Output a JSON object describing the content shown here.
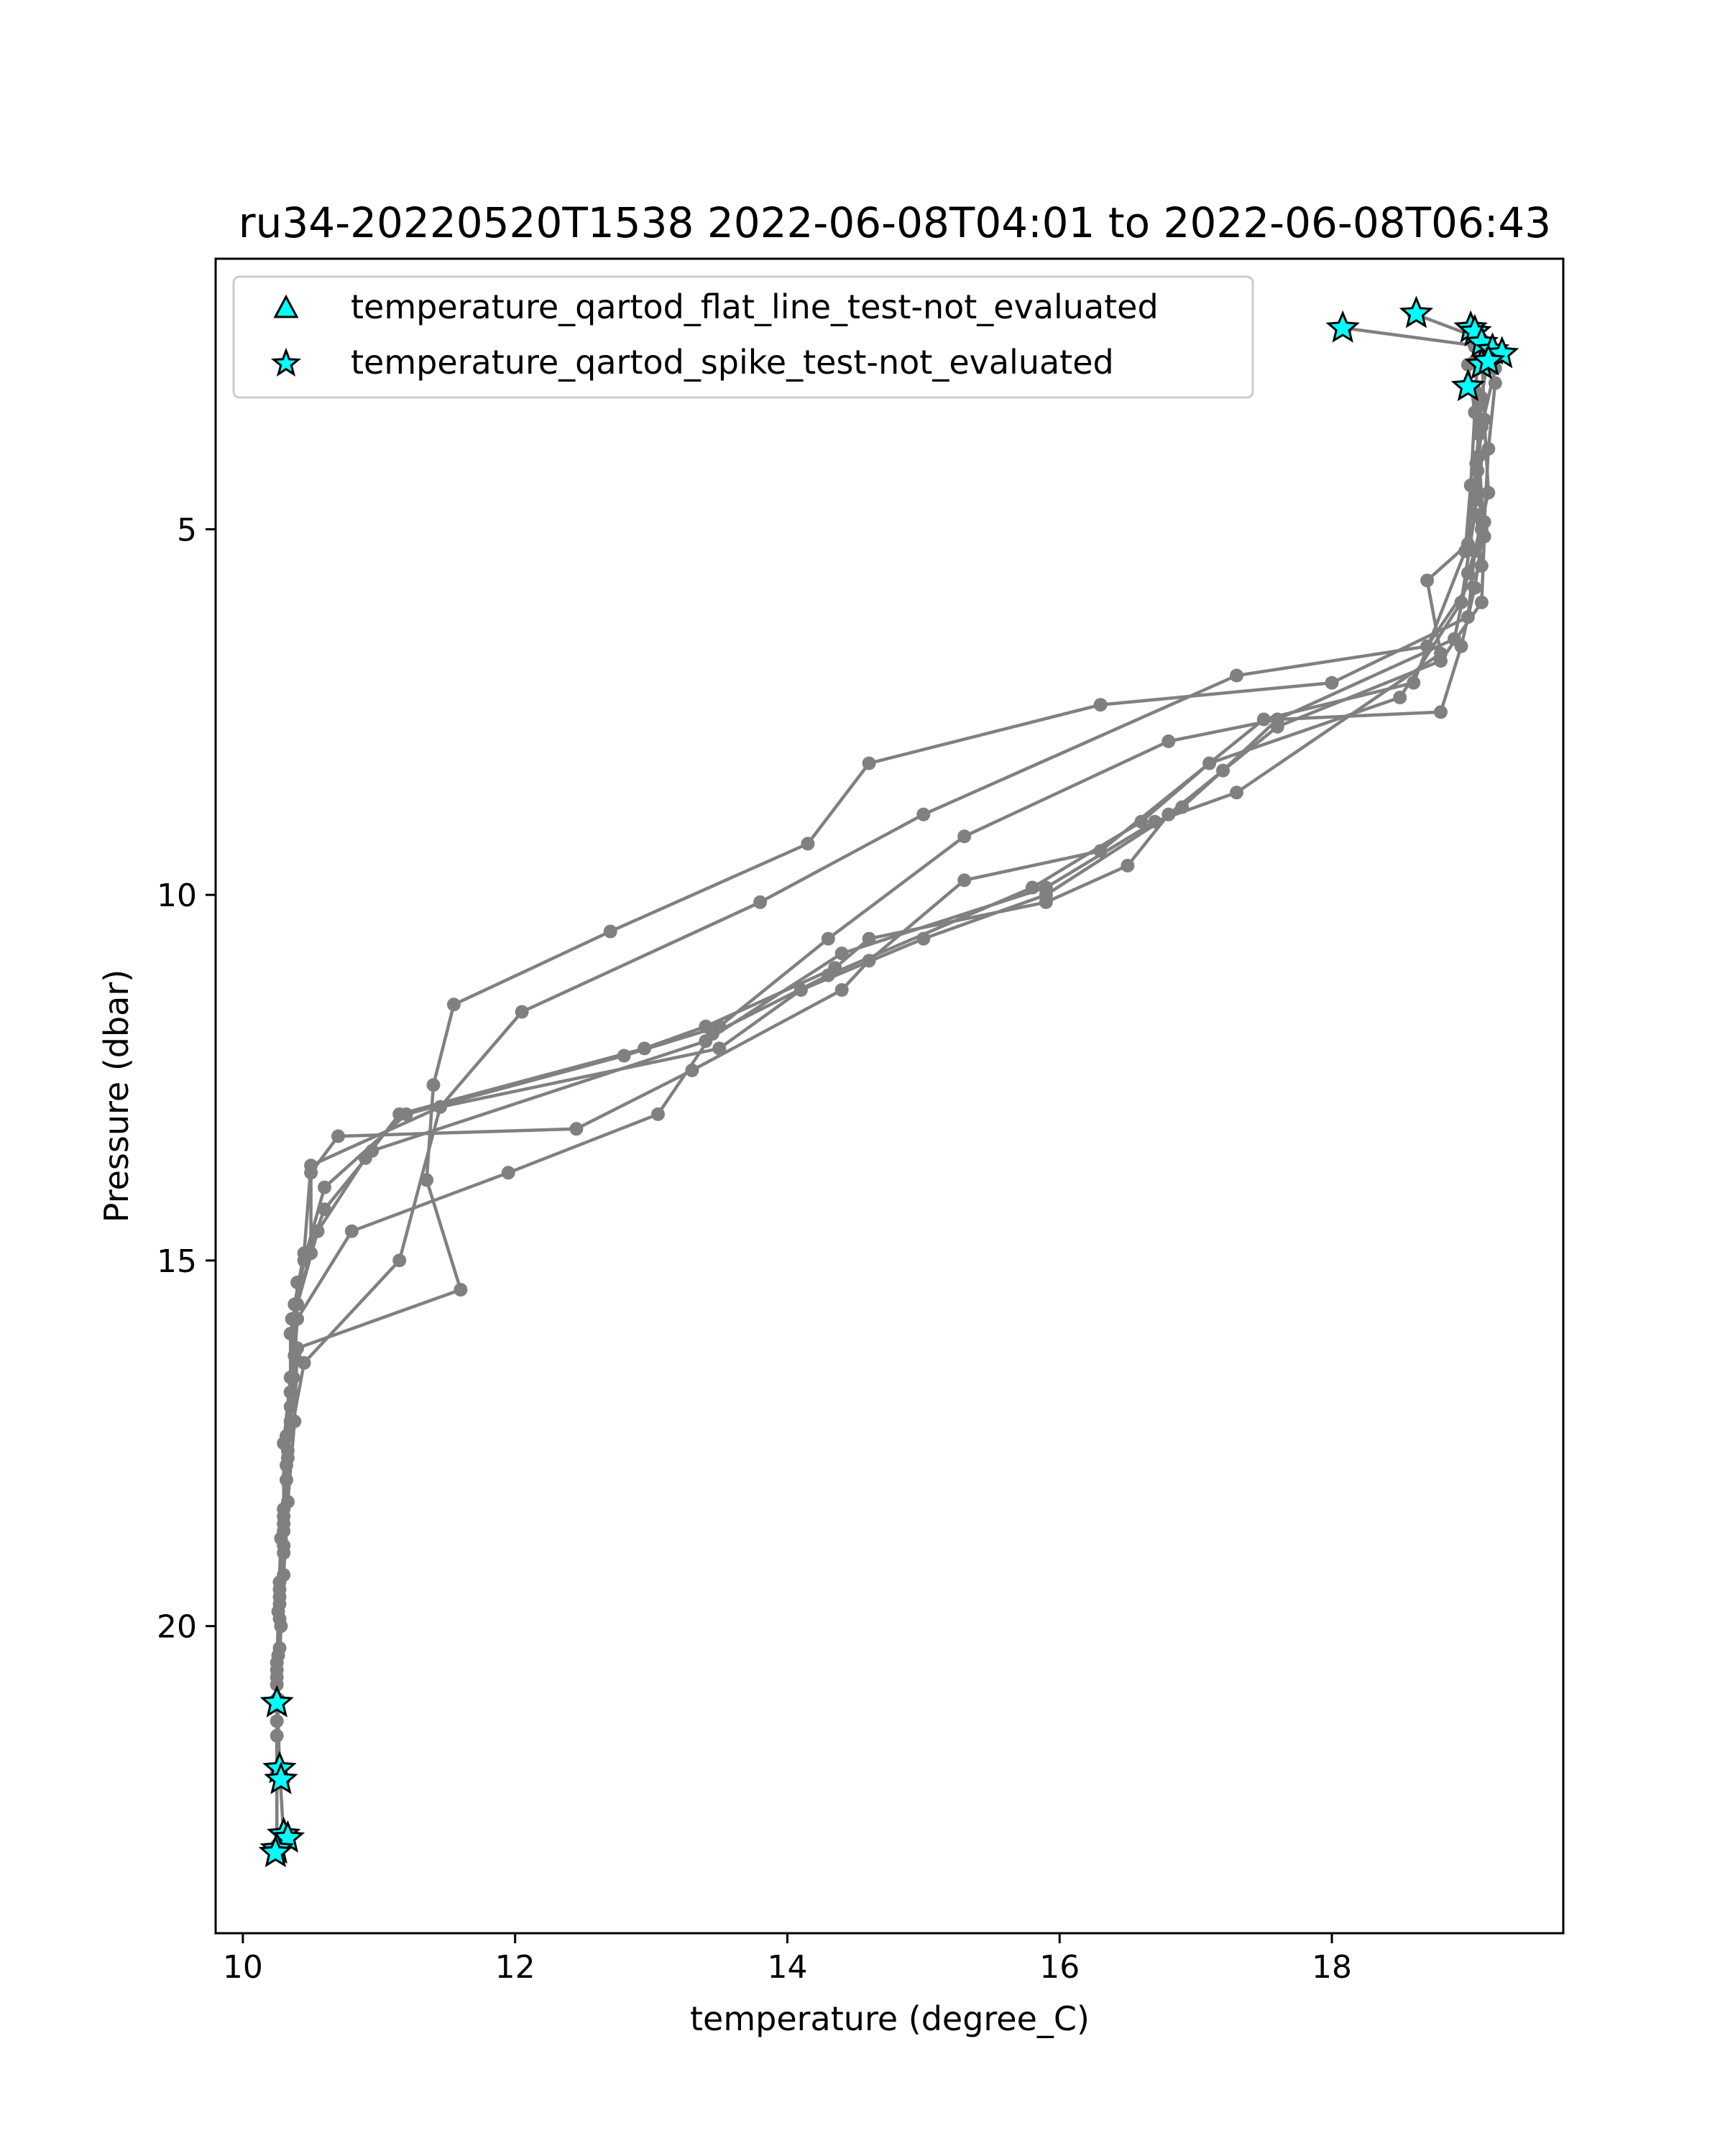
{
  "chart_data": {
    "type": "line",
    "title": "ru34-20220520T1538 2022-06-08T04:01 to 2022-06-08T06:43",
    "xlabel": "temperature (degree_C)",
    "ylabel": "Pressure (dbar)",
    "xlim": [
      9.8,
      19.7
    ],
    "ylim": [
      24.2,
      1.3
    ],
    "y_inverted": true,
    "xticks": [
      10,
      12,
      14,
      16,
      18
    ],
    "yticks": [
      5,
      10,
      15,
      20
    ],
    "grid": false,
    "legend_position": "top-left",
    "line_color": "#808080",
    "legend": [
      {
        "label": "temperature_qartod_flat_line_test-not_evaluated",
        "marker": "triangle",
        "color": "#00ffff"
      },
      {
        "label": "temperature_qartod_spike_test-not_evaluated",
        "marker": "star",
        "color": "#00ffff"
      }
    ],
    "profiles": [
      [
        [
          19.05,
          2.7
        ],
        [
          19.08,
          3.3
        ],
        [
          19.07,
          4.2
        ],
        [
          19.1,
          5.0
        ],
        [
          19.0,
          5.6
        ],
        [
          18.9,
          6.5
        ],
        [
          17.6,
          7.6
        ],
        [
          16.8,
          7.9
        ],
        [
          15.3,
          9.2
        ],
        [
          14.3,
          10.6
        ],
        [
          13.5,
          11.8
        ],
        [
          12.8,
          12.2
        ],
        [
          11.2,
          13.0
        ],
        [
          10.6,
          14.0
        ],
        [
          10.45,
          15.0
        ],
        [
          10.35,
          16.0
        ],
        [
          10.35,
          17.0
        ],
        [
          10.32,
          18.0
        ],
        [
          10.3,
          19.0
        ],
        [
          10.28,
          20.0
        ],
        [
          10.26,
          21.0
        ],
        [
          10.25,
          22.0
        ],
        [
          10.25,
          23.0
        ]
      ],
      [
        [
          18.1,
          2.25
        ],
        [
          19.1,
          2.5
        ],
        [
          19.12,
          3.5
        ],
        [
          19.15,
          4.5
        ],
        [
          19.05,
          5.3
        ],
        [
          19.0,
          6.2
        ],
        [
          18.0,
          7.1
        ],
        [
          16.3,
          7.4
        ],
        [
          14.6,
          8.2
        ],
        [
          14.15,
          9.3
        ],
        [
          12.7,
          10.5
        ],
        [
          11.55,
          11.5
        ],
        [
          11.4,
          12.6
        ],
        [
          11.35,
          13.9
        ],
        [
          11.6,
          15.4
        ],
        [
          10.4,
          16.2
        ],
        [
          10.38,
          17.2
        ],
        [
          10.33,
          18.3
        ],
        [
          10.3,
          19.3
        ],
        [
          10.27,
          20.3
        ],
        [
          10.25,
          21.0
        ]
      ],
      [
        [
          19.2,
          2.8
        ],
        [
          19.1,
          3.6
        ],
        [
          19.05,
          4.6
        ],
        [
          19.1,
          5.5
        ],
        [
          18.7,
          6.6
        ],
        [
          17.3,
          7.0
        ],
        [
          15.0,
          8.9
        ],
        [
          13.8,
          10.1
        ],
        [
          12.05,
          11.6
        ],
        [
          11.45,
          12.9
        ],
        [
          11.15,
          15.0
        ],
        [
          10.45,
          16.4
        ],
        [
          10.33,
          17.6
        ],
        [
          10.3,
          18.6
        ],
        [
          10.27,
          19.6
        ],
        [
          10.25,
          20.6
        ],
        [
          10.27,
          22.0
        ]
      ],
      [
        [
          18.6,
          2.05
        ],
        [
          19.1,
          2.4
        ],
        [
          19.05,
          3.1
        ],
        [
          19.08,
          4.0
        ],
        [
          19.12,
          5.1
        ],
        [
          19.1,
          6.0
        ],
        [
          18.8,
          6.8
        ],
        [
          17.6,
          7.7
        ],
        [
          16.8,
          8.9
        ],
        [
          16.5,
          9.6
        ],
        [
          15.9,
          10.1
        ],
        [
          14.6,
          10.6
        ],
        [
          14.35,
          11.0
        ],
        [
          13.4,
          11.8
        ],
        [
          12.95,
          12.1
        ],
        [
          11.15,
          13.0
        ],
        [
          10.9,
          13.6
        ],
        [
          10.55,
          14.6
        ],
        [
          10.4,
          15.6
        ],
        [
          10.37,
          16.6
        ],
        [
          10.33,
          17.7
        ],
        [
          10.3,
          18.7
        ],
        [
          10.27,
          19.7
        ],
        [
          10.25,
          20.7
        ],
        [
          10.25,
          22.0
        ]
      ],
      [
        [
          19.15,
          2.6
        ],
        [
          19.1,
          3.2
        ],
        [
          19.06,
          4.1
        ],
        [
          19.0,
          5.2
        ],
        [
          18.7,
          5.7
        ],
        [
          18.8,
          6.7
        ],
        [
          17.3,
          8.6
        ],
        [
          16.7,
          9.0
        ],
        [
          15.9,
          9.9
        ],
        [
          14.4,
          10.8
        ],
        [
          13.4,
          12.0
        ],
        [
          10.95,
          13.5
        ],
        [
          10.6,
          14.3
        ],
        [
          10.4,
          15.3
        ],
        [
          10.38,
          16.3
        ],
        [
          10.32,
          17.4
        ],
        [
          10.3,
          18.4
        ],
        [
          10.27,
          19.4
        ],
        [
          10.26,
          20.4
        ],
        [
          10.25,
          21.3
        ],
        [
          10.3,
          22.9
        ]
      ],
      [
        [
          19.0,
          2.75
        ],
        [
          19.05,
          3.4
        ],
        [
          19.02,
          4.4
        ],
        [
          18.98,
          5.3
        ],
        [
          18.6,
          7.1
        ],
        [
          17.5,
          7.6
        ],
        [
          16.3,
          9.4
        ],
        [
          15.3,
          9.8
        ],
        [
          14.6,
          10.9
        ],
        [
          14.4,
          11.3
        ],
        [
          13.3,
          12.4
        ],
        [
          12.45,
          13.2
        ],
        [
          10.7,
          13.3
        ],
        [
          10.5,
          13.8
        ],
        [
          10.5,
          14.9
        ],
        [
          10.36,
          15.8
        ],
        [
          10.35,
          16.8
        ],
        [
          10.32,
          17.8
        ],
        [
          10.28,
          18.8
        ],
        [
          10.26,
          19.8
        ],
        [
          10.25,
          20.8
        ],
        [
          10.25,
          23.0
        ]
      ],
      [
        [
          19.05,
          2.5
        ],
        [
          19.08,
          3.7
        ],
        [
          19.05,
          4.8
        ],
        [
          18.95,
          6.0
        ],
        [
          18.5,
          7.3
        ],
        [
          17.1,
          8.2
        ],
        [
          16.6,
          9.0
        ],
        [
          15.8,
          9.9
        ],
        [
          14.3,
          11.1
        ],
        [
          13.45,
          11.9
        ],
        [
          13.05,
          13.0
        ],
        [
          11.95,
          13.8
        ],
        [
          10.8,
          14.6
        ],
        [
          10.4,
          15.8
        ],
        [
          10.35,
          17.2
        ],
        [
          10.3,
          18.5
        ],
        [
          10.27,
          19.5
        ],
        [
          10.25,
          20.5
        ],
        [
          10.25,
          21.5
        ]
      ],
      [
        [
          19.2,
          3.0
        ],
        [
          19.15,
          3.9
        ],
        [
          19.12,
          4.9
        ],
        [
          19.05,
          5.8
        ],
        [
          18.95,
          6.6
        ],
        [
          18.8,
          7.5
        ],
        [
          17.6,
          7.6
        ],
        [
          17.2,
          8.3
        ],
        [
          16.9,
          8.8
        ],
        [
          15.9,
          10.0
        ],
        [
          15.0,
          10.6
        ],
        [
          14.1,
          11.3
        ],
        [
          13.5,
          12.1
        ],
        [
          11.45,
          12.9
        ],
        [
          10.5,
          13.7
        ],
        [
          10.45,
          14.9
        ],
        [
          10.38,
          15.6
        ],
        [
          10.35,
          16.6
        ],
        [
          10.3,
          17.5
        ],
        [
          10.3,
          18.9
        ],
        [
          10.27,
          19.9
        ],
        [
          10.25,
          21.0
        ],
        [
          10.25,
          22.0
        ]
      ]
    ],
    "star_markers": [
      [
        18.08,
        2.25
      ],
      [
        18.62,
        2.05
      ],
      [
        19.02,
        2.25
      ],
      [
        19.05,
        2.3
      ],
      [
        19.1,
        2.45
      ],
      [
        19.18,
        2.55
      ],
      [
        19.25,
        2.6
      ],
      [
        19.1,
        2.75
      ],
      [
        19.15,
        2.7
      ],
      [
        19.0,
        3.05
      ],
      [
        10.25,
        21.05
      ],
      [
        10.27,
        21.95
      ],
      [
        10.28,
        22.1
      ],
      [
        10.3,
        22.85
      ],
      [
        10.33,
        22.9
      ],
      [
        10.25,
        23.05
      ],
      [
        10.24,
        23.1
      ]
    ]
  }
}
